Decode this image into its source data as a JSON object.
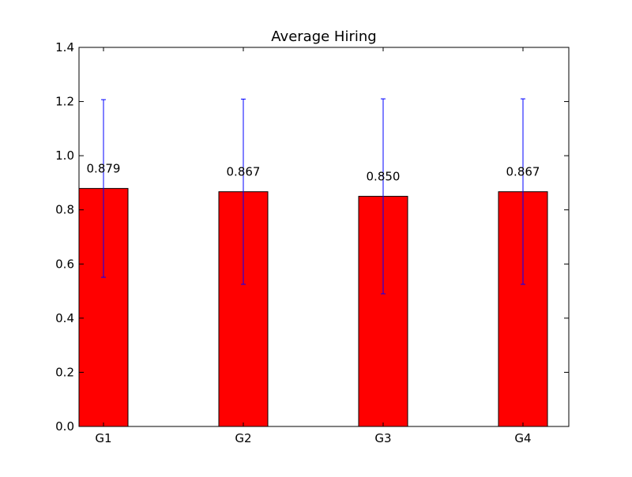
{
  "chart_data": {
    "type": "bar",
    "title": "Average Hiring",
    "xlabel": "",
    "ylabel": "",
    "categories": [
      "G1",
      "G2",
      "G3",
      "G4"
    ],
    "values": [
      0.879,
      0.867,
      0.85,
      0.867
    ],
    "value_labels": [
      "0.879",
      "0.867",
      "0.850",
      "0.867"
    ],
    "error_upper": [
      1.207,
      1.209,
      1.21,
      1.21
    ],
    "error_lower": [
      0.551,
      0.525,
      0.49,
      0.525
    ],
    "ylim": [
      0.0,
      1.4
    ],
    "yticks": [
      0.0,
      0.2,
      0.4,
      0.6,
      0.8,
      1.0,
      1.2,
      1.4
    ],
    "ytick_labels": [
      "0.0",
      "0.2",
      "0.4",
      "0.6",
      "0.8",
      "1.0",
      "1.2",
      "1.4"
    ],
    "grid": false,
    "colors": {
      "bar_fill": "#ff0000",
      "bar_edge": "#000000",
      "errorbar": "#0000ff",
      "axes": "#000000"
    }
  }
}
